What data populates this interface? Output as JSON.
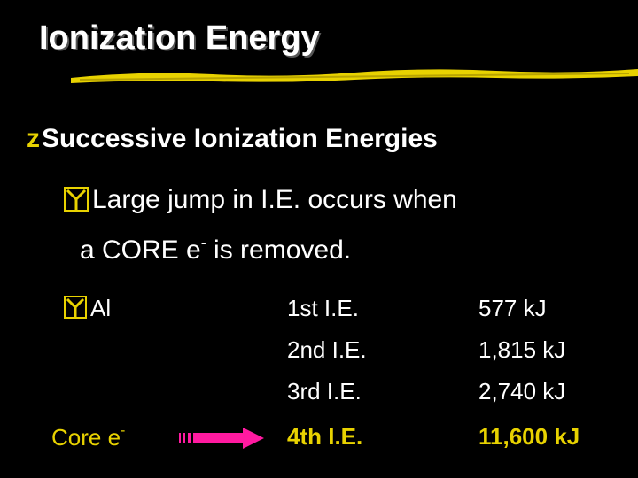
{
  "slide": {
    "title": "Ionization Energy",
    "bullet1": {
      "glyph": "z",
      "text": "Successive Ionization Energies"
    },
    "bullet2": {
      "icon": "checkbox-bullet-icon",
      "line1": "Large jump in I.E. occurs when",
      "line2_pre": "a CORE e",
      "line2_sup": "-",
      "line2_post": " is removed."
    },
    "element": {
      "icon": "checkbox-bullet-icon",
      "label": "Al"
    },
    "rows": [
      {
        "ie": "1st I.E.",
        "value": "577 kJ"
      },
      {
        "ie": "2nd I.E.",
        "value": "1,815 kJ"
      },
      {
        "ie": "3rd I.E.",
        "value": "2,740 kJ"
      },
      {
        "ie": "4th I.E.",
        "value": "11,600 kJ"
      }
    ],
    "core": {
      "text": "Core e",
      "sup": "-"
    },
    "colors": {
      "background": "#000000",
      "text": "#ffffff",
      "accent": "#e8d200",
      "arrow": "#ff1aa0"
    }
  }
}
